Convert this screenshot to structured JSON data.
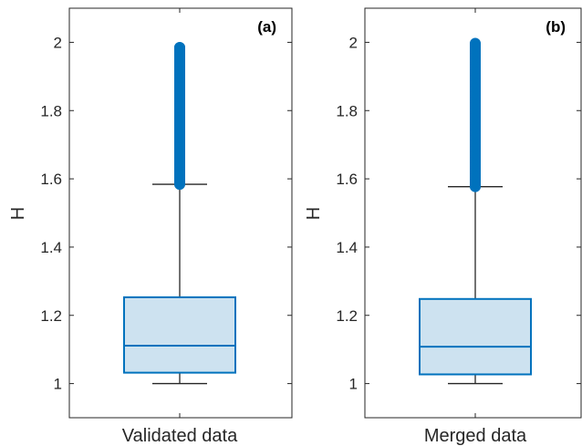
{
  "chart_data": [
    {
      "type": "boxplot",
      "panel_label": "(a)",
      "category": "Validated data",
      "xlabel": "",
      "ylabel": "H",
      "ylim": [
        0.9,
        2.1
      ],
      "yticks": [
        1,
        1.2,
        1.4,
        1.6,
        1.8,
        2
      ],
      "ytick_labels": [
        "1",
        "1.2",
        "1.4",
        "1.6",
        "1.8",
        "2"
      ],
      "whisker_low": 1.0,
      "q1": 1.032,
      "median": 1.111,
      "q3": 1.253,
      "whisker_high": 1.584,
      "outliers_range": [
        1.584,
        1.985
      ],
      "outliers": [
        1.59,
        1.61,
        1.63,
        1.65,
        1.67,
        1.69,
        1.71,
        1.73,
        1.75,
        1.77,
        1.79,
        1.81,
        1.83,
        1.85,
        1.865,
        1.878,
        1.89,
        1.9,
        1.912,
        1.925,
        1.935,
        1.945,
        1.955,
        1.965,
        1.975,
        1.985
      ]
    },
    {
      "type": "boxplot",
      "panel_label": "(b)",
      "category": "Merged data",
      "xlabel": "",
      "ylabel": "H",
      "ylim": [
        0.9,
        2.1
      ],
      "yticks": [
        1,
        1.2,
        1.4,
        1.6,
        1.8,
        2
      ],
      "ytick_labels": [
        "1",
        "1.2",
        "1.4",
        "1.6",
        "1.8",
        "2"
      ],
      "whisker_low": 1.0,
      "q1": 1.027,
      "median": 1.108,
      "q3": 1.248,
      "whisker_high": 1.577,
      "outliers_range": [
        1.577,
        2.0
      ],
      "outliers": []
    }
  ],
  "colors": {
    "box_edge": "#0072BD",
    "box_fill": "#CDE2F0",
    "whisker": "#262626",
    "axes": "#262626",
    "outlier": "#0072BD",
    "background": "#ffffff"
  }
}
